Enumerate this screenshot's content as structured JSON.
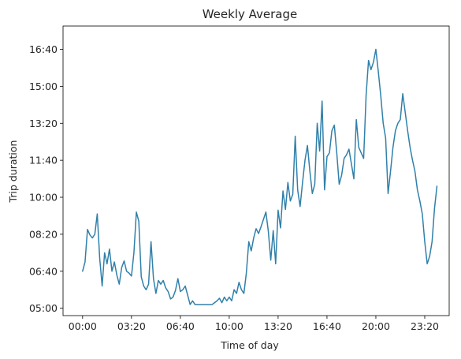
{
  "chart_data": {
    "type": "line",
    "title": "Weekly Average",
    "xlabel": "Time of day",
    "ylabel": "Trip duration",
    "x_unit": "minutes since 00:00",
    "y_unit": "minutes",
    "xlim": [
      -80,
      1500
    ],
    "ylim": [
      280,
      1063
    ],
    "xticks": [
      {
        "value": 0,
        "label": "00:00"
      },
      {
        "value": 200,
        "label": "03:20"
      },
      {
        "value": 400,
        "label": "06:40"
      },
      {
        "value": 600,
        "label": "10:00"
      },
      {
        "value": 800,
        "label": "13:20"
      },
      {
        "value": 1000,
        "label": "16:40"
      },
      {
        "value": 1200,
        "label": "20:00"
      },
      {
        "value": 1400,
        "label": "23:20"
      }
    ],
    "yticks": [
      {
        "value": 300,
        "label": "05:00"
      },
      {
        "value": 400,
        "label": "06:40"
      },
      {
        "value": 500,
        "label": "08:20"
      },
      {
        "value": 600,
        "label": "10:00"
      },
      {
        "value": 700,
        "label": "11:40"
      },
      {
        "value": 800,
        "label": "13:20"
      },
      {
        "value": 900,
        "label": "15:00"
      },
      {
        "value": 1000,
        "label": "16:40"
      }
    ],
    "grid": false,
    "legend": "none",
    "series": [
      {
        "color": "#3080aa",
        "x": [
          0,
          10,
          20,
          30,
          40,
          50,
          60,
          70,
          80,
          90,
          100,
          110,
          120,
          130,
          140,
          150,
          160,
          170,
          180,
          190,
          200,
          210,
          220,
          230,
          240,
          250,
          260,
          270,
          280,
          290,
          300,
          310,
          320,
          330,
          340,
          350,
          360,
          370,
          380,
          390,
          400,
          410,
          420,
          430,
          440,
          450,
          460,
          470,
          480,
          490,
          500,
          510,
          520,
          530,
          540,
          550,
          560,
          570,
          580,
          590,
          600,
          610,
          620,
          630,
          640,
          650,
          660,
          670,
          680,
          690,
          700,
          710,
          720,
          730,
          740,
          750,
          760,
          770,
          780,
          790,
          800,
          810,
          820,
          830,
          840,
          850,
          860,
          870,
          880,
          890,
          900,
          910,
          920,
          930,
          940,
          950,
          960,
          970,
          980,
          990,
          1000,
          1010,
          1020,
          1030,
          1040,
          1050,
          1060,
          1070,
          1080,
          1090,
          1100,
          1110,
          1120,
          1130,
          1140,
          1150,
          1160,
          1170,
          1180,
          1190,
          1200,
          1210,
          1220,
          1230,
          1240,
          1250,
          1260,
          1270,
          1280,
          1290,
          1300,
          1310,
          1320,
          1330,
          1340,
          1350,
          1360,
          1370,
          1380,
          1390,
          1400,
          1410,
          1420,
          1430,
          1440,
          1450
        ],
        "y": [
          400,
          425,
          513,
          498,
          490,
          500,
          555,
          435,
          360,
          450,
          420,
          460,
          400,
          425,
          390,
          365,
          410,
          428,
          400,
          395,
          387,
          450,
          560,
          535,
          385,
          360,
          350,
          365,
          480,
          380,
          340,
          375,
          365,
          375,
          355,
          345,
          325,
          330,
          348,
          380,
          345,
          350,
          360,
          335,
          310,
          320,
          310,
          310,
          310,
          310,
          310,
          310,
          310,
          310,
          315,
          320,
          327,
          315,
          330,
          320,
          330,
          320,
          350,
          340,
          370,
          350,
          340,
          395,
          480,
          455,
          490,
          515,
          502,
          520,
          540,
          560,
          508,
          430,
          510,
          420,
          565,
          517,
          617,
          567,
          640,
          590,
          608,
          765,
          620,
          575,
          640,
          700,
          740,
          670,
          610,
          635,
          800,
          725,
          860,
          620,
          710,
          720,
          780,
          795,
          720,
          635,
          660,
          705,
          715,
          730,
          690,
          650,
          810,
          735,
          720,
          705,
          875,
          970,
          945,
          965,
          1000,
          940,
          875,
          800,
          760,
          610,
          670,
          735,
          780,
          800,
          810,
          880,
          830,
          780,
          735,
          700,
          670,
          620,
          590,
          555,
          480,
          420,
          440,
          480,
          570,
          630
        ]
      }
    ]
  }
}
